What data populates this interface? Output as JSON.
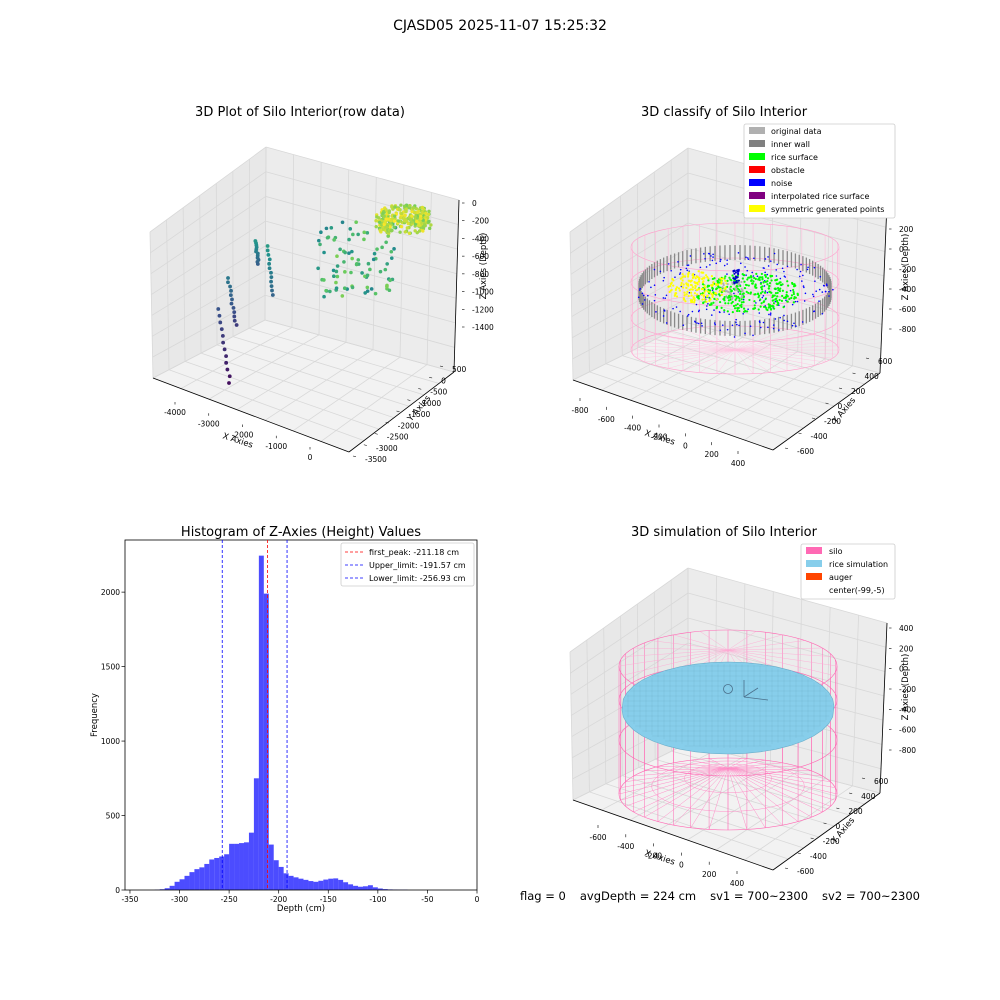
{
  "figure": {
    "suptitle": "CJASD05 2025-11-07 15:25:32",
    "footer": {
      "flag": "flag = 0",
      "avg_depth": "avgDepth = 224 cm",
      "sv1": "sv1 = 700~2300",
      "sv2": "sv2 = 700~2300"
    }
  },
  "chart_data": [
    {
      "type": "scatter",
      "subtype": "3d",
      "title": "3D Plot of Silo Interior(row data)",
      "xlabel": "X Axies",
      "ylabel": "Y Axies",
      "zlabel": "Z Axies (Depth)",
      "xticks": [
        "-4000",
        "-3000",
        "-2000",
        "-1000",
        "0"
      ],
      "yticks": [
        "500",
        "0",
        "-500",
        "-1000",
        "-1500",
        "-2000",
        "-2500",
        "-3000",
        "-3500"
      ],
      "zticks": [
        "0",
        "-200",
        "-400",
        "-600",
        "-800",
        "-1000",
        "-1200",
        "-1400"
      ],
      "colormap": "viridis",
      "grid": true
    },
    {
      "type": "scatter",
      "subtype": "3d",
      "title": "3D classify of Silo Interior",
      "xlabel": "X Axies",
      "ylabel": "Y Axies",
      "zlabel": "Z Axies (Depth)",
      "xticks": [
        "-800",
        "-600",
        "-400",
        "-200",
        "0",
        "200",
        "400"
      ],
      "yticks": [
        "600",
        "400",
        "200",
        "0",
        "-200",
        "-400",
        "-600"
      ],
      "zticks": [
        "200",
        "0",
        "-200",
        "-400",
        "-600",
        "-800"
      ],
      "legend_position": "top-right",
      "legend": [
        {
          "label": "original data",
          "color": "#b0b0b0"
        },
        {
          "label": "inner wall",
          "color": "#808080"
        },
        {
          "label": "rice surface",
          "color": "#00ff00"
        },
        {
          "label": "obstacle",
          "color": "#ff0000"
        },
        {
          "label": "noise",
          "color": "#0000ff"
        },
        {
          "label": "interpolated rice surface",
          "color": "#800080"
        },
        {
          "label": "symmetric generated points",
          "color": "#ffff00"
        }
      ],
      "grid": true
    },
    {
      "type": "bar",
      "subtype": "histogram",
      "title": "Histogram of Z-Axies (Height) Values",
      "xlabel": "Depth (cm)",
      "ylabel": "Frequency",
      "xlim": [
        -355,
        0
      ],
      "ylim": [
        0,
        2350
      ],
      "xticks": [
        -350,
        -300,
        -250,
        -200,
        -150,
        -100,
        -50,
        0
      ],
      "yticks": [
        0,
        500,
        1000,
        1500,
        2000
      ],
      "bin_width": 5,
      "bins": [
        [
          -325,
          2
        ],
        [
          -320,
          5
        ],
        [
          -315,
          12
        ],
        [
          -310,
          28
        ],
        [
          -305,
          55
        ],
        [
          -300,
          72
        ],
        [
          -295,
          95
        ],
        [
          -290,
          120
        ],
        [
          -285,
          140
        ],
        [
          -280,
          152
        ],
        [
          -275,
          175
        ],
        [
          -270,
          205
        ],
        [
          -265,
          215
        ],
        [
          -260,
          225
        ],
        [
          -255,
          240
        ],
        [
          -250,
          310
        ],
        [
          -245,
          310
        ],
        [
          -240,
          315
        ],
        [
          -235,
          320
        ],
        [
          -230,
          385
        ],
        [
          -225,
          750
        ],
        [
          -220,
          2245
        ],
        [
          -215,
          1990
        ],
        [
          -210,
          305
        ],
        [
          -205,
          200
        ],
        [
          -200,
          155
        ],
        [
          -195,
          112
        ],
        [
          -190,
          95
        ],
        [
          -185,
          85
        ],
        [
          -180,
          76
        ],
        [
          -175,
          68
        ],
        [
          -170,
          60
        ],
        [
          -165,
          55
        ],
        [
          -160,
          62
        ],
        [
          -155,
          70
        ],
        [
          -150,
          76
        ],
        [
          -145,
          78
        ],
        [
          -140,
          68
        ],
        [
          -135,
          52
        ],
        [
          -130,
          38
        ],
        [
          -125,
          28
        ],
        [
          -120,
          22
        ],
        [
          -115,
          25
        ],
        [
          -110,
          32
        ],
        [
          -105,
          18
        ],
        [
          -100,
          10
        ],
        [
          -95,
          6
        ],
        [
          -90,
          4
        ],
        [
          -85,
          3
        ],
        [
          -80,
          2
        ],
        [
          -75,
          2
        ]
      ],
      "color": "#0000ff",
      "lines": [
        {
          "label": "first_peak: -211.18 cm",
          "x": -211.18,
          "color": "#ff0000"
        },
        {
          "label": "Upper_limit: -191.57 cm",
          "x": -191.57,
          "color": "#0000ff"
        },
        {
          "label": "Lower_limit: -256.93 cm",
          "x": -256.93,
          "color": "#0000ff"
        }
      ],
      "legend_position": "top-right",
      "grid": false
    },
    {
      "type": "scatter",
      "subtype": "3d-surface",
      "title": "3D simulation of Silo Interior",
      "xlabel": "X Axies",
      "ylabel": "Y Axies",
      "zlabel": "Z Axies (Depth)",
      "xticks": [
        "-600",
        "-400",
        "-200",
        "0",
        "200",
        "400"
      ],
      "yticks": [
        "600",
        "400",
        "200",
        "0",
        "-200",
        "-400",
        "-600"
      ],
      "zticks": [
        "400",
        "200",
        "0",
        "-200",
        "-400",
        "-600",
        "-800"
      ],
      "legend_position": "top-right",
      "legend": [
        {
          "label": "silo",
          "color": "#ff69b4"
        },
        {
          "label": "rice simulation",
          "color": "#87ceeb"
        },
        {
          "label": "auger",
          "color": "#ff4500"
        },
        {
          "label": "center(-99,-5)",
          "color": ""
        }
      ],
      "grid": true
    }
  ]
}
